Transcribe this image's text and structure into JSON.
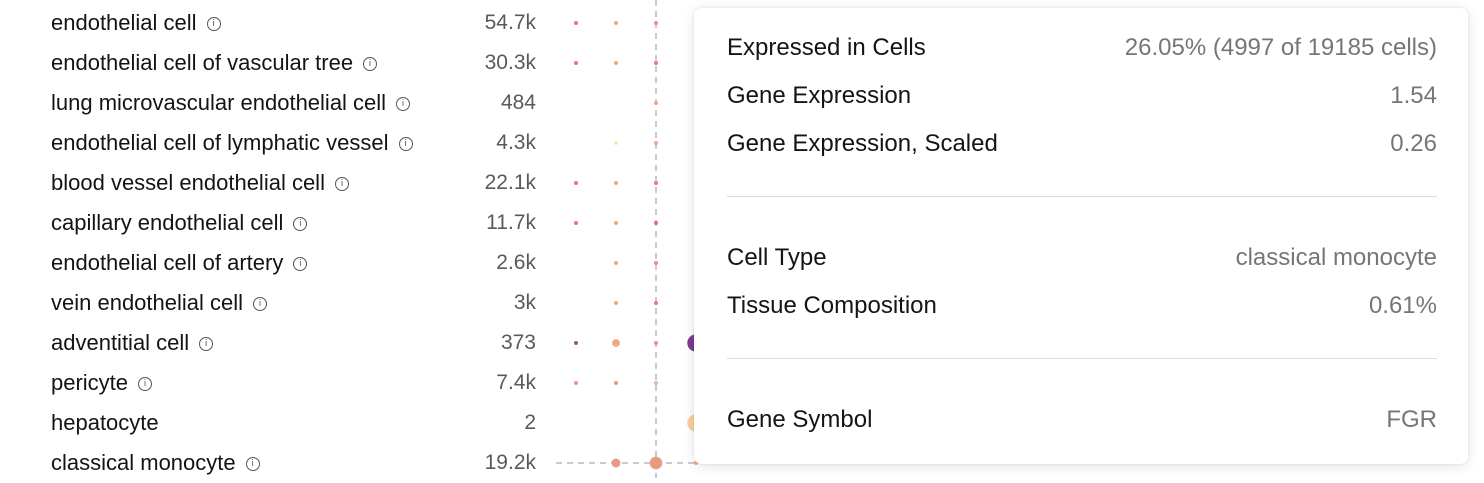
{
  "chart_data": {
    "type": "scatter",
    "rows": [
      {
        "label": "endothelial cell",
        "info": true,
        "count": "54.7k"
      },
      {
        "label": "endothelial cell of vascular tree",
        "info": true,
        "count": "30.3k"
      },
      {
        "label": "lung microvascular endothelial cell",
        "info": true,
        "count": "484"
      },
      {
        "label": "endothelial cell of lymphatic vessel",
        "info": true,
        "count": "4.3k"
      },
      {
        "label": "blood vessel endothelial cell",
        "info": true,
        "count": "22.1k"
      },
      {
        "label": "capillary endothelial cell",
        "info": true,
        "count": "11.7k"
      },
      {
        "label": "endothelial cell of artery",
        "info": true,
        "count": "2.6k"
      },
      {
        "label": "vein endothelial cell",
        "info": true,
        "count": "3k"
      },
      {
        "label": "adventitial cell",
        "info": true,
        "count": "373"
      },
      {
        "label": "pericyte",
        "info": true,
        "count": "7.4k"
      },
      {
        "label": "hepatocyte",
        "info": false,
        "count": "2"
      },
      {
        "label": "classical monocyte",
        "info": true,
        "count": "19.2k"
      }
    ],
    "columns": [
      "col1",
      "col2",
      "col3",
      "col4"
    ],
    "dots": [
      {
        "row": 0,
        "col": 0,
        "size": 0.14,
        "color": "#e07b7b"
      },
      {
        "row": 0,
        "col": 1,
        "size": 0.14,
        "color": "#f0a983"
      },
      {
        "row": 0,
        "col": 2,
        "size": 0.14,
        "color": "#e8927f"
      },
      {
        "row": 1,
        "col": 0,
        "size": 0.14,
        "color": "#e07b7b"
      },
      {
        "row": 1,
        "col": 1,
        "size": 0.14,
        "color": "#f0a983"
      },
      {
        "row": 1,
        "col": 2,
        "size": 0.14,
        "color": "#e07b7b"
      },
      {
        "row": 2,
        "col": 2,
        "size": 0.14,
        "color": "#f0a983"
      },
      {
        "row": 3,
        "col": 1,
        "size": 0.14,
        "color": "#fbe6bf"
      },
      {
        "row": 3,
        "col": 2,
        "size": 0.14,
        "color": "#f0a983"
      },
      {
        "row": 4,
        "col": 0,
        "size": 0.14,
        "color": "#e07b7b"
      },
      {
        "row": 4,
        "col": 1,
        "size": 0.14,
        "color": "#f0a983"
      },
      {
        "row": 4,
        "col": 2,
        "size": 0.14,
        "color": "#e07b7b"
      },
      {
        "row": 5,
        "col": 0,
        "size": 0.14,
        "color": "#e07b7b"
      },
      {
        "row": 5,
        "col": 1,
        "size": 0.14,
        "color": "#f0a983"
      },
      {
        "row": 5,
        "col": 2,
        "size": 0.14,
        "color": "#d9707a"
      },
      {
        "row": 6,
        "col": 1,
        "size": 0.14,
        "color": "#f0a983"
      },
      {
        "row": 6,
        "col": 2,
        "size": 0.14,
        "color": "#e8927f"
      },
      {
        "row": 7,
        "col": 1,
        "size": 0.14,
        "color": "#f0a983"
      },
      {
        "row": 7,
        "col": 2,
        "size": 0.14,
        "color": "#e07b7b"
      },
      {
        "row": 8,
        "col": 0,
        "size": 0.14,
        "color": "#9b4f9e"
      },
      {
        "row": 8,
        "col": 1,
        "size": 0.28,
        "color": "#f0a983"
      },
      {
        "row": 8,
        "col": 2,
        "size": 0.14,
        "color": "#e8927f"
      },
      {
        "row": 8,
        "col": 3,
        "size": 0.62,
        "color": "#7a3f8f"
      },
      {
        "row": 9,
        "col": 0,
        "size": 0.14,
        "color": "#e8927f"
      },
      {
        "row": 9,
        "col": 1,
        "size": 0.14,
        "color": "#e8927f"
      },
      {
        "row": 9,
        "col": 2,
        "size": 0.14,
        "color": "#f0b49a"
      },
      {
        "row": 10,
        "col": 3,
        "size": 0.62,
        "color": "#f6d0a0"
      },
      {
        "row": 11,
        "col": 1,
        "size": 0.32,
        "color": "#ea9a82"
      },
      {
        "row": 11,
        "col": 2,
        "size": 0.45,
        "color": "#ea9a82"
      },
      {
        "row": 11,
        "col": 3,
        "size": 0.14,
        "color": "#f0a983"
      }
    ],
    "highlight": {
      "row": 11,
      "col": 2
    }
  },
  "tooltip": {
    "expressed_label": "Expressed in Cells",
    "expressed_value": "26.05% (4997 of 19185 cells)",
    "expression_label": "Gene Expression",
    "expression_value": "1.54",
    "scaled_label": "Gene Expression, Scaled",
    "scaled_value": "0.26",
    "cell_type_label": "Cell Type",
    "cell_type_value": "classical monocyte",
    "tissue_label": "Tissue Composition",
    "tissue_value": "0.61%",
    "gene_label": "Gene Symbol",
    "gene_value": "FGR"
  },
  "icons": {
    "info": "info-circle-icon"
  }
}
